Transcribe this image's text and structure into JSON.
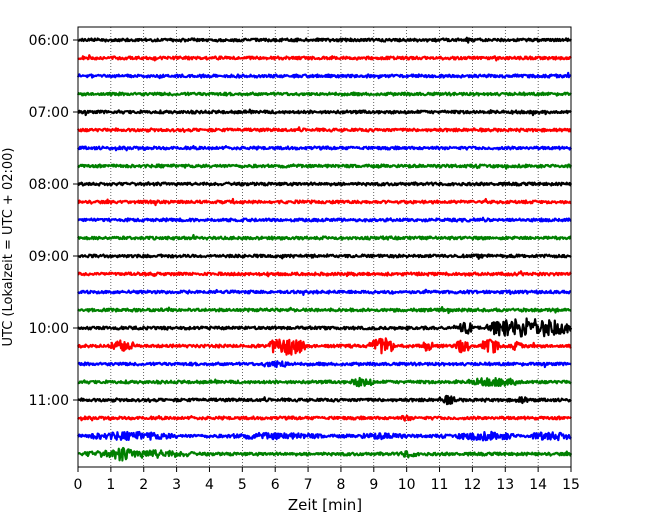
{
  "chart_data": {
    "type": "line",
    "xlabel": "Zeit  [min]",
    "ylabel": "UTC (Lokalzeit = UTC + 02:00)",
    "xlim": [
      0,
      15
    ],
    "x_ticks": [
      "0",
      "1",
      "2",
      "3",
      "4",
      "5",
      "6",
      "7",
      "8",
      "9",
      "10",
      "11",
      "12",
      "13",
      "14",
      "15"
    ],
    "y_tick_labels": [
      "06:00",
      "07:00",
      "08:00",
      "09:00",
      "10:00",
      "11:00"
    ],
    "y_tick_rows": [
      0,
      4,
      8,
      12,
      16,
      20
    ],
    "grid": "vertical dotted",
    "trace_interval_min": 15,
    "trace_count": 24,
    "trace_colors": [
      "#000000",
      "#ff0000",
      "#0000ff",
      "#008000"
    ],
    "events": [
      {
        "row": 16,
        "start": 11.6,
        "end": 12.0,
        "amp": 0.7
      },
      {
        "row": 16,
        "start": 12.4,
        "end": 15.0,
        "amp": 1.1
      },
      {
        "row": 17,
        "start": 1.0,
        "end": 1.7,
        "amp": 0.7
      },
      {
        "row": 17,
        "start": 5.8,
        "end": 6.9,
        "amp": 1.0
      },
      {
        "row": 17,
        "start": 8.9,
        "end": 9.6,
        "amp": 1.0
      },
      {
        "row": 17,
        "start": 10.5,
        "end": 10.8,
        "amp": 0.6
      },
      {
        "row": 17,
        "start": 11.5,
        "end": 11.9,
        "amp": 0.8
      },
      {
        "row": 17,
        "start": 12.3,
        "end": 12.8,
        "amp": 0.9
      },
      {
        "row": 17,
        "start": 13.2,
        "end": 13.5,
        "amp": 0.5
      },
      {
        "row": 18,
        "start": 5.6,
        "end": 6.5,
        "amp": 0.4
      },
      {
        "row": 19,
        "start": 8.3,
        "end": 9.0,
        "amp": 0.5
      },
      {
        "row": 19,
        "start": 11.8,
        "end": 13.5,
        "amp": 0.45
      },
      {
        "row": 20,
        "start": 11.0,
        "end": 11.5,
        "amp": 0.5
      },
      {
        "row": 20,
        "start": 13.3,
        "end": 13.7,
        "amp": 0.4
      },
      {
        "row": 21,
        "start": 9.8,
        "end": 10.2,
        "amp": 0.3
      },
      {
        "row": 22,
        "start": 0.3,
        "end": 3.0,
        "amp": 0.45
      },
      {
        "row": 22,
        "start": 4.5,
        "end": 7.5,
        "amp": 0.35
      },
      {
        "row": 22,
        "start": 8.5,
        "end": 10.0,
        "amp": 0.35
      },
      {
        "row": 22,
        "start": 11.5,
        "end": 13.3,
        "amp": 0.5
      },
      {
        "row": 22,
        "start": 13.8,
        "end": 15.0,
        "amp": 0.5
      },
      {
        "row": 23,
        "start": 0.2,
        "end": 3.5,
        "amp": 0.45
      },
      {
        "row": 23,
        "start": 1.0,
        "end": 1.6,
        "amp": 0.8
      },
      {
        "row": 23,
        "start": 9.8,
        "end": 10.3,
        "amp": 0.4
      }
    ]
  }
}
